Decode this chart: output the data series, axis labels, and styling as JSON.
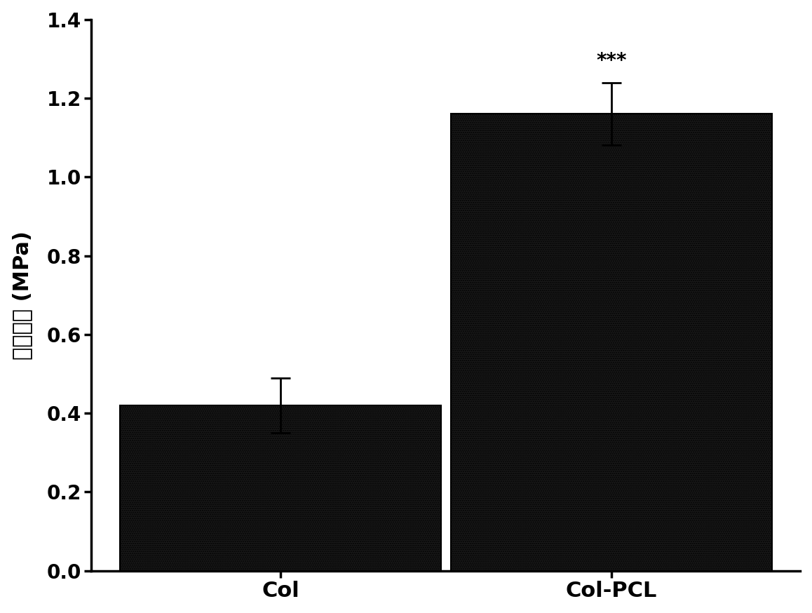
{
  "categories": [
    "Col",
    "Col-PCL"
  ],
  "values": [
    0.42,
    1.16
  ],
  "errors": [
    0.07,
    0.08
  ],
  "bar_color": "#1a1a1a",
  "bar_edge_color": "#000000",
  "ylabel": "拉伸强度 (MPa)",
  "ylim": [
    0,
    1.4
  ],
  "yticks": [
    0.0,
    0.2,
    0.4,
    0.6,
    0.8,
    1.0,
    1.2,
    1.4
  ],
  "significance_label": "***",
  "significance_bar_index": 1,
  "background_color": "#ffffff",
  "bar_width": 0.68,
  "hatch_pattern": "......",
  "label_fontsize": 22,
  "tick_fontsize": 20,
  "sig_fontsize": 20,
  "x_positions": [
    0.3,
    1.0
  ]
}
